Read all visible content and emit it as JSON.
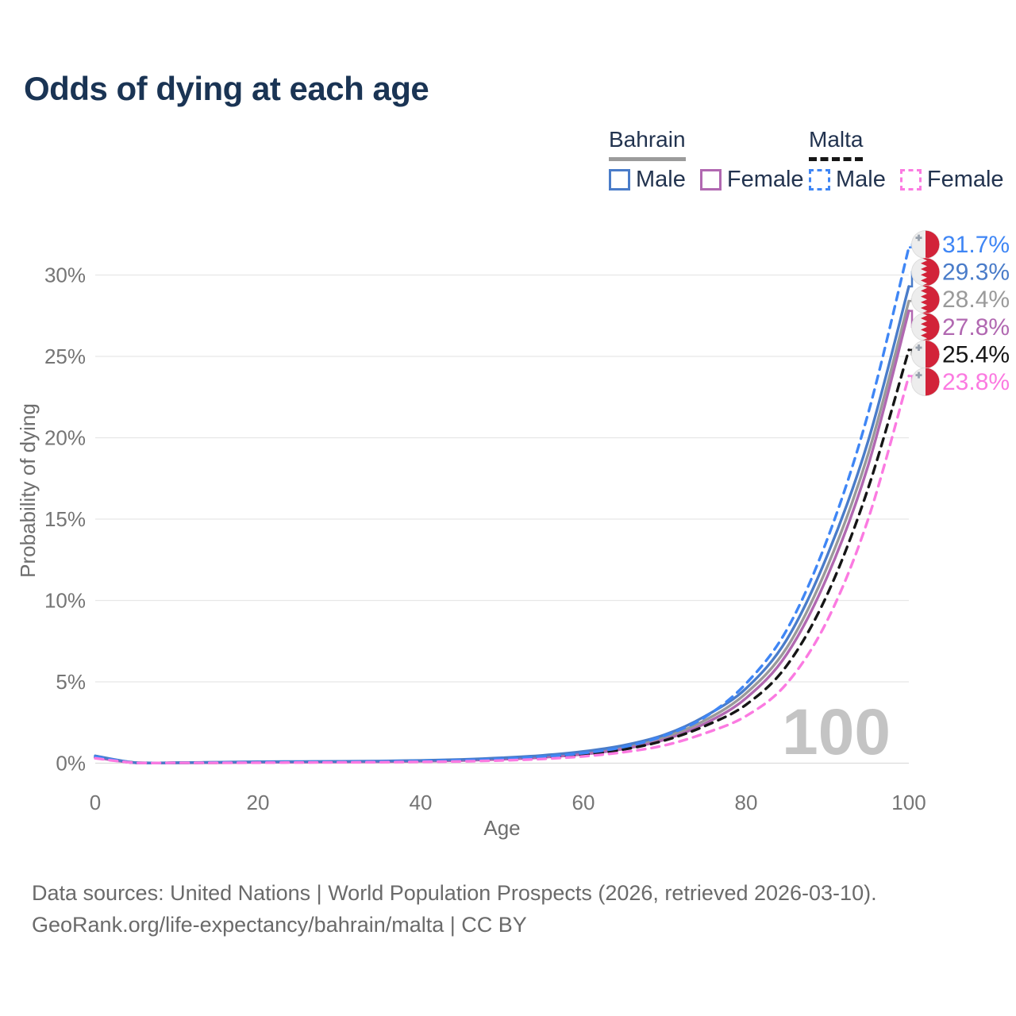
{
  "title": "Odds of dying at each age",
  "legend": {
    "groups": [
      {
        "name": "Bahrain",
        "style": "solid",
        "rule_color": "#9b9b9b",
        "items": [
          {
            "label": "Male",
            "color": "#4a7cc9"
          },
          {
            "label": "Female",
            "color": "#b168b1"
          }
        ]
      },
      {
        "name": "Malta",
        "style": "dashed",
        "rule_color": "#161616",
        "items": [
          {
            "label": "Male",
            "color": "#3f86f5"
          },
          {
            "label": "Female",
            "color": "#fb7ae1"
          }
        ]
      }
    ]
  },
  "watermark": "100",
  "footer": {
    "line1": "Data sources: United Nations | World Population Prospects (2026, retrieved 2026-03-10).",
    "line2": "GeoRank.org/life-expectancy/bahrain/malta | CC BY"
  },
  "chart_data": {
    "type": "line",
    "title": "Odds of dying at each age",
    "xlabel": "Age",
    "ylabel": "Probability of dying",
    "xlim": [
      0,
      100
    ],
    "ylim": [
      0,
      32
    ],
    "x_ticks": [
      0,
      20,
      40,
      60,
      80,
      100
    ],
    "y_ticks": [
      {
        "value": 0,
        "label": "0%"
      },
      {
        "value": 5,
        "label": "5%"
      },
      {
        "value": 10,
        "label": "10%"
      },
      {
        "value": 15,
        "label": "15%"
      },
      {
        "value": 20,
        "label": "20%"
      },
      {
        "value": 25,
        "label": "25%"
      },
      {
        "value": 30,
        "label": "30%"
      }
    ],
    "grid": "horizontal",
    "legend_position": "top-right",
    "x": [
      0,
      5,
      10,
      15,
      20,
      25,
      30,
      35,
      40,
      45,
      50,
      55,
      60,
      65,
      70,
      75,
      80,
      85,
      90,
      95,
      100
    ],
    "series": [
      {
        "name": "Bahrain Total",
        "country": "bahrain",
        "sex": "total",
        "color": "#9a9a9a",
        "dash": false,
        "end_value": 28.4,
        "end_label": "28.4%",
        "values": [
          0.4,
          0.03,
          0.02,
          0.05,
          0.07,
          0.08,
          0.09,
          0.11,
          0.14,
          0.2,
          0.28,
          0.42,
          0.63,
          0.98,
          1.6,
          2.65,
          4.3,
          7.1,
          12.1,
          19.0,
          28.4
        ]
      },
      {
        "name": "Bahrain Female",
        "country": "bahrain",
        "sex": "female",
        "color": "#b168b1",
        "dash": false,
        "end_value": 27.8,
        "end_label": "27.8%",
        "values": [
          0.35,
          0.02,
          0.02,
          0.03,
          0.05,
          0.06,
          0.07,
          0.09,
          0.12,
          0.16,
          0.24,
          0.36,
          0.55,
          0.88,
          1.45,
          2.45,
          4.0,
          6.7,
          11.5,
          18.3,
          27.8
        ]
      },
      {
        "name": "Bahrain Male",
        "country": "bahrain",
        "sex": "male",
        "color": "#4a7cc9",
        "dash": false,
        "end_value": 29.3,
        "end_label": "29.3%",
        "values": [
          0.45,
          0.03,
          0.03,
          0.06,
          0.09,
          0.1,
          0.11,
          0.13,
          0.17,
          0.23,
          0.33,
          0.48,
          0.72,
          1.1,
          1.75,
          2.9,
          4.6,
          7.6,
          12.8,
          19.8,
          29.3
        ]
      },
      {
        "name": "Malta Total",
        "country": "malta",
        "sex": "total",
        "color": "#151515",
        "dash": true,
        "end_value": 25.4,
        "end_label": "25.4%",
        "values": [
          0.35,
          0.02,
          0.02,
          0.03,
          0.05,
          0.06,
          0.07,
          0.08,
          0.11,
          0.15,
          0.22,
          0.34,
          0.52,
          0.85,
          1.4,
          2.3,
          3.6,
          6.0,
          10.4,
          16.9,
          25.4
        ]
      },
      {
        "name": "Malta Male",
        "country": "malta",
        "sex": "male",
        "color": "#3f86f5",
        "dash": true,
        "end_value": 31.7,
        "end_label": "31.7%",
        "values": [
          0.4,
          0.02,
          0.02,
          0.04,
          0.06,
          0.07,
          0.08,
          0.1,
          0.13,
          0.18,
          0.26,
          0.4,
          0.62,
          1.0,
          1.7,
          2.85,
          4.9,
          8.2,
          13.8,
          21.5,
          31.7
        ]
      },
      {
        "name": "Malta Female",
        "country": "malta",
        "sex": "female",
        "color": "#fb7ae1",
        "dash": true,
        "end_value": 23.8,
        "end_label": "23.8%",
        "values": [
          0.3,
          0.02,
          0.02,
          0.02,
          0.03,
          0.04,
          0.05,
          0.06,
          0.08,
          0.11,
          0.17,
          0.26,
          0.42,
          0.68,
          1.1,
          1.85,
          2.9,
          4.9,
          8.8,
          15.0,
          23.8
        ]
      }
    ],
    "flag_colors": {
      "red": "#d22339",
      "white": "#ededed",
      "cross_gray": "#98a1ad"
    }
  }
}
